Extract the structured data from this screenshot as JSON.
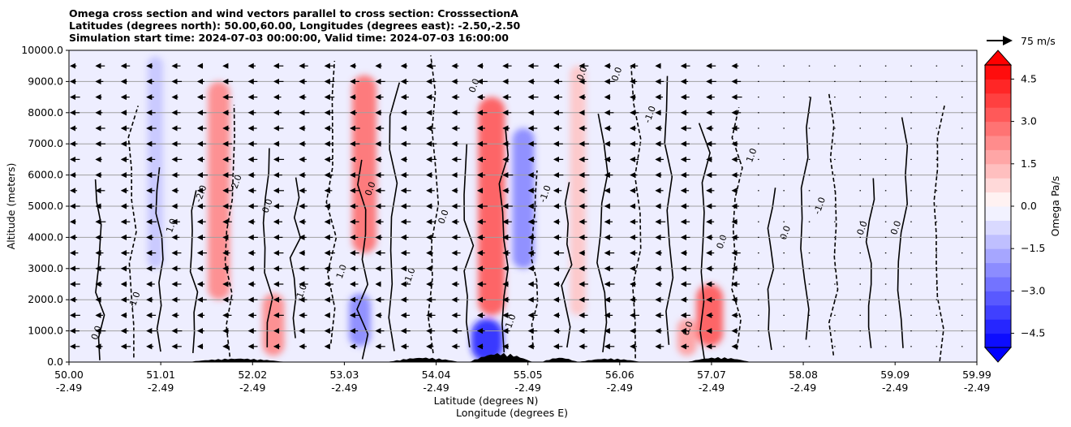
{
  "chart_data": {
    "type": "heatmap",
    "title_lines": [
      "Omega cross section and wind vectors parallel to cross section: CrosssectionA",
      "Latitudes (degrees north): 50.00,60.00, Longitudes (degrees east): -2.50,-2.50",
      "Simulation start time: 2024-07-03 00:00:00, Valid time: 2024-07-03 16:00:00"
    ],
    "ylabel": "Altitude (meters)",
    "xlabel_lines": [
      "Latitude (degrees N)",
      "Longitude (degrees E)"
    ],
    "ylim": [
      0,
      10000
    ],
    "xlim": [
      50.0,
      59.99
    ],
    "y_ticks": [
      {
        "value": 0,
        "label": "0.0"
      },
      {
        "value": 1000,
        "label": "1000.0"
      },
      {
        "value": 2000,
        "label": "2000.0"
      },
      {
        "value": 3000,
        "label": "3000.0"
      },
      {
        "value": 4000,
        "label": "4000.0"
      },
      {
        "value": 5000,
        "label": "5000.0"
      },
      {
        "value": 6000,
        "label": "6000.0"
      },
      {
        "value": 7000,
        "label": "7000.0"
      },
      {
        "value": 8000,
        "label": "8000.0"
      },
      {
        "value": 9000,
        "label": "9000.0"
      },
      {
        "value": 10000,
        "label": "10000.0"
      }
    ],
    "x_ticks": [
      {
        "lat": 50.0,
        "lat_label": "50.00",
        "lon_label": "-2.49"
      },
      {
        "lat": 51.01,
        "lat_label": "51.01",
        "lon_label": "-2.49"
      },
      {
        "lat": 52.02,
        "lat_label": "52.02",
        "lon_label": "-2.49"
      },
      {
        "lat": 53.03,
        "lat_label": "53.03",
        "lon_label": "-2.49"
      },
      {
        "lat": 54.04,
        "lat_label": "54.04",
        "lon_label": "-2.49"
      },
      {
        "lat": 55.05,
        "lat_label": "55.05",
        "lon_label": "-2.49"
      },
      {
        "lat": 56.06,
        "lat_label": "56.06",
        "lon_label": "-2.49"
      },
      {
        "lat": 57.07,
        "lat_label": "57.07",
        "lon_label": "-2.49"
      },
      {
        "lat": 58.08,
        "lat_label": "58.08",
        "lon_label": "-2.49"
      },
      {
        "lat": 59.09,
        "lat_label": "59.09",
        "lon_label": "-2.49"
      },
      {
        "lat": 59.99,
        "lat_label": "59.99",
        "lon_label": "-2.49"
      }
    ],
    "grid": "horizontal",
    "colorbar": {
      "label": "Omega Pa/s",
      "range": [
        -5.0,
        5.0
      ],
      "ticks": [
        {
          "value": 4.5,
          "label": "4.5"
        },
        {
          "value": 3.0,
          "label": "3.0"
        },
        {
          "value": 1.5,
          "label": "1.5"
        },
        {
          "value": 0.0,
          "label": "0.0"
        },
        {
          "value": -1.5,
          "label": "−1.5"
        },
        {
          "value": -3.0,
          "label": "−3.0"
        },
        {
          "value": -4.5,
          "label": "−4.5"
        }
      ],
      "colors": {
        "positive_max": "#ff0000",
        "zero": "#ffffff",
        "negative_max": "#0000ff"
      }
    },
    "quiver_key": {
      "label": "75 m/s"
    },
    "omega_features": [
      {
        "lat": 51.65,
        "z0": 2000,
        "z1": 9000,
        "value": 2.5
      },
      {
        "lat": 53.25,
        "z0": 3500,
        "z1": 9200,
        "value": 3.0
      },
      {
        "lat": 54.65,
        "z0": 1500,
        "z1": 8500,
        "value": 3.5
      },
      {
        "lat": 55.0,
        "z0": 3000,
        "z1": 7500,
        "value": -2.5
      },
      {
        "lat": 57.05,
        "z0": 500,
        "z1": 2500,
        "value": 3.5
      },
      {
        "lat": 53.2,
        "z0": 500,
        "z1": 2200,
        "value": -2.5
      },
      {
        "lat": 54.6,
        "z0": 0,
        "z1": 1400,
        "value": -4.5
      },
      {
        "lat": 52.25,
        "z0": 200,
        "z1": 2200,
        "value": 2.5
      },
      {
        "lat": 56.8,
        "z0": 200,
        "z1": 1400,
        "value": 2.0
      },
      {
        "lat": 50.95,
        "z0": 3000,
        "z1": 9800,
        "value": -1.2
      },
      {
        "lat": 55.6,
        "z0": 1500,
        "z1": 9500,
        "value": 1.2
      }
    ],
    "contour_labels": [
      "0.0",
      "-1.0",
      "1.0",
      "-2.0",
      "2.0",
      "0.0",
      "-1.0",
      "1.0",
      "0.0",
      "-1.0",
      "0.0",
      "0.0",
      "1.0",
      "-1.0",
      "0.0",
      "0.0",
      "-1.0",
      "0.0",
      "0.0",
      "1.0",
      "0.0",
      "-1.0",
      "0.0",
      "0.0"
    ],
    "contour_label_values": [
      0,
      -1,
      1,
      -2,
      2,
      0,
      -1,
      1,
      0,
      -1,
      0,
      0,
      1,
      -1,
      0,
      0,
      -1,
      0,
      0,
      1,
      0,
      -1,
      0,
      0
    ]
  }
}
